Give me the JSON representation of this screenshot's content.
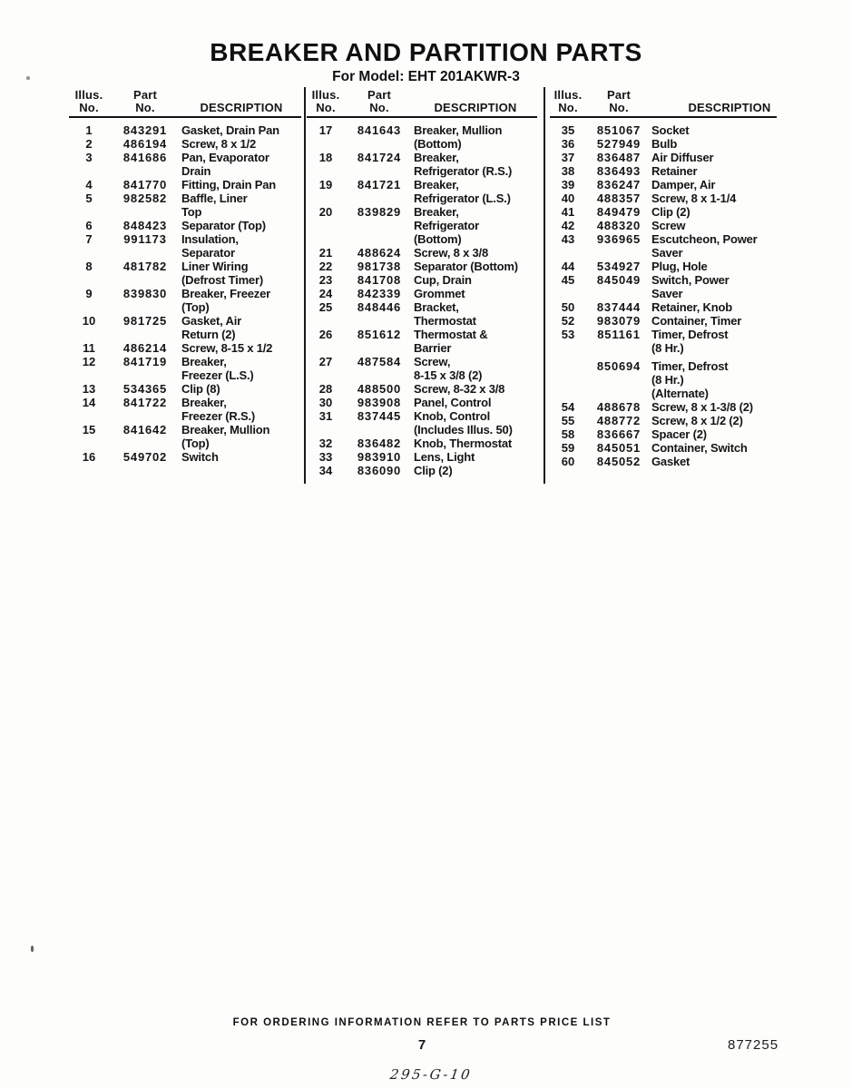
{
  "page": {
    "title": "BREAKER AND PARTITION PARTS",
    "subtitle": "For Model: EHT 201AKWR-3",
    "ordering_note": "FOR ORDERING INFORMATION REFER TO PARTS PRICE LIST",
    "page_number": "7",
    "doc_number": "877255",
    "handwritten_note": "295-G-10"
  },
  "parts_table": {
    "headers": {
      "illus": "Illus.",
      "no": "No.",
      "part": "Part",
      "description": "DESCRIPTION"
    },
    "columns": [
      {
        "rows": [
          {
            "illus": "1",
            "part": "843291",
            "desc": "Gasket, Drain Pan"
          },
          {
            "illus": "2",
            "part": "486194",
            "desc": "Screw, 8 x 1/2"
          },
          {
            "illus": "3",
            "part": "841686",
            "desc": "Pan, Evaporator\nDrain"
          },
          {
            "illus": "4",
            "part": "841770",
            "desc": "Fitting, Drain Pan"
          },
          {
            "illus": "5",
            "part": "982582",
            "desc": "Baffle, Liner\nTop"
          },
          {
            "illus": "6",
            "part": "848423",
            "desc": "Separator (Top)"
          },
          {
            "illus": "7",
            "part": "991173",
            "desc": "Insulation,\nSeparator"
          },
          {
            "illus": "8",
            "part": "481782",
            "desc": "Liner Wiring\n(Defrost Timer)"
          },
          {
            "illus": "9",
            "part": "839830",
            "desc": "Breaker, Freezer\n(Top)"
          },
          {
            "illus": "10",
            "part": "981725",
            "desc": "Gasket, Air\nReturn (2)"
          },
          {
            "illus": "11",
            "part": "486214",
            "desc": "Screw, 8-15 x 1/2"
          },
          {
            "illus": "12",
            "part": "841719",
            "desc": "Breaker,\nFreezer (L.S.)"
          },
          {
            "illus": "13",
            "part": "534365",
            "desc": "Clip (8)"
          },
          {
            "illus": "14",
            "part": "841722",
            "desc": "Breaker,\nFreezer (R.S.)"
          },
          {
            "illus": "15",
            "part": "841642",
            "desc": "Breaker, Mullion\n(Top)"
          },
          {
            "illus": "16",
            "part": "549702",
            "desc": "Switch"
          }
        ]
      },
      {
        "rows": [
          {
            "illus": "17",
            "part": "841643",
            "desc": "Breaker, Mullion\n(Bottom)"
          },
          {
            "illus": "18",
            "part": "841724",
            "desc": "Breaker,\nRefrigerator (R.S.)"
          },
          {
            "illus": "19",
            "part": "841721",
            "desc": "Breaker,\nRefrigerator (L.S.)"
          },
          {
            "illus": "20",
            "part": "839829",
            "desc": "Breaker,\nRefrigerator\n(Bottom)"
          },
          {
            "illus": "21",
            "part": "488624",
            "desc": "Screw, 8 x 3/8"
          },
          {
            "illus": "22",
            "part": "981738",
            "desc": "Separator (Bottom)"
          },
          {
            "illus": "23",
            "part": "841708",
            "desc": "Cup, Drain"
          },
          {
            "illus": "24",
            "part": "842339",
            "desc": "Grommet"
          },
          {
            "illus": "25",
            "part": "848446",
            "desc": "Bracket,\nThermostat"
          },
          {
            "illus": "26",
            "part": "851612",
            "desc": "Thermostat &\nBarrier"
          },
          {
            "illus": "27",
            "part": "487584",
            "desc": "Screw,\n8-15 x 3/8 (2)"
          },
          {
            "illus": "28",
            "part": "488500",
            "desc": "Screw, 8-32 x 3/8"
          },
          {
            "illus": "30",
            "part": "983908",
            "desc": "Panel, Control"
          },
          {
            "illus": "31",
            "part": "837445",
            "desc": "Knob, Control\n(Includes Illus. 50)"
          },
          {
            "illus": "32",
            "part": "836482",
            "desc": "Knob, Thermostat"
          },
          {
            "illus": "33",
            "part": "983910",
            "desc": "Lens, Light"
          },
          {
            "illus": "34",
            "part": "836090",
            "desc": "Clip (2)"
          }
        ]
      },
      {
        "rows": [
          {
            "illus": "35",
            "part": "851067",
            "desc": "Socket"
          },
          {
            "illus": "36",
            "part": "527949",
            "desc": "Bulb"
          },
          {
            "illus": "37",
            "part": "836487",
            "desc": "Air Diffuser"
          },
          {
            "illus": "38",
            "part": "836493",
            "desc": "Retainer"
          },
          {
            "illus": "39",
            "part": "836247",
            "desc": "Damper, Air"
          },
          {
            "illus": "40",
            "part": "488357",
            "desc": "Screw, 8 x 1-1/4"
          },
          {
            "illus": "41",
            "part": "849479",
            "desc": "Clip (2)"
          },
          {
            "illus": "42",
            "part": "488320",
            "desc": "Screw"
          },
          {
            "illus": "43",
            "part": "936965",
            "desc": "Escutcheon, Power\nSaver"
          },
          {
            "illus": "44",
            "part": "534927",
            "desc": "Plug, Hole"
          },
          {
            "illus": "45",
            "part": "845049",
            "desc": "Switch, Power\nSaver"
          },
          {
            "illus": "50",
            "part": "837444",
            "desc": "Retainer, Knob"
          },
          {
            "illus": "52",
            "part": "983079",
            "desc": "Container, Timer"
          },
          {
            "illus": "53",
            "part": "851161",
            "desc": "Timer, Defrost\n(8 Hr.)"
          },
          {
            "illus": "",
            "part": "850694",
            "desc": "Timer, Defrost\n(8 Hr.)\n(Alternate)"
          },
          {
            "illus": "54",
            "part": "488678",
            "desc": "Screw, 8 x 1-3/8 (2)"
          },
          {
            "illus": "55",
            "part": "488772",
            "desc": "Screw, 8 x 1/2 (2)"
          },
          {
            "illus": "58",
            "part": "836667",
            "desc": "Spacer (2)"
          },
          {
            "illus": "59",
            "part": "845051",
            "desc": "Container, Switch"
          },
          {
            "illus": "60",
            "part": "845052",
            "desc": "Gasket"
          }
        ]
      }
    ]
  }
}
